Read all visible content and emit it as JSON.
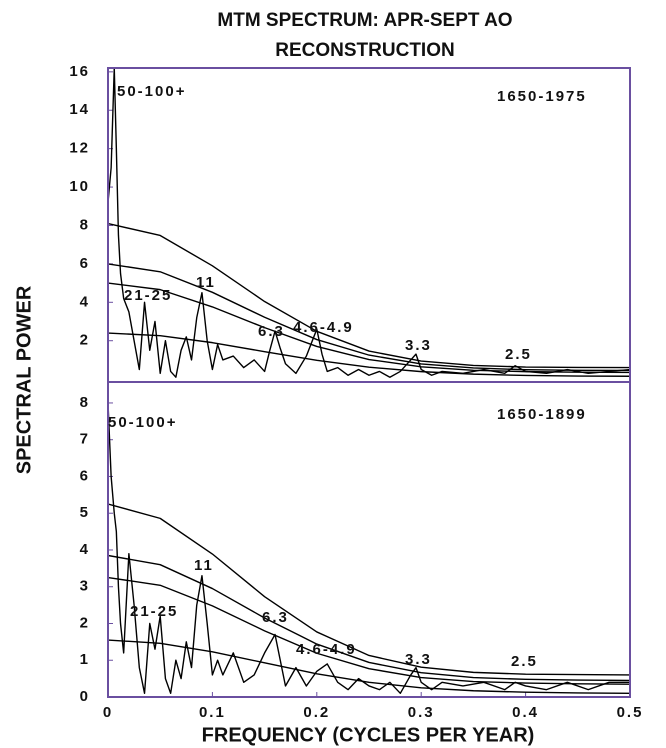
{
  "chart_data": [
    {
      "type": "line",
      "title": "MTM SPECTRUM: APR-SEPT AO RECONSTRUCTION",
      "ylabel": "SPECTRAL POWER",
      "xlim": [
        0,
        0.5
      ],
      "ylim": [
        -0.15,
        16.2
      ],
      "yticks": [
        2,
        4,
        6,
        8,
        10,
        12,
        14,
        16
      ],
      "color": "#000000",
      "frame_color": "#6a4fa0",
      "annotations": [
        "50-100+",
        "1650-1975",
        "11",
        "21-25",
        "6.3",
        "4.6-4.9",
        "3.3",
        "2.5"
      ],
      "series": [
        {
          "x": [
            0,
            0.003,
            0.006,
            0.008,
            0.01,
            0.012,
            0.015,
            0.02,
            0.025,
            0.03,
            0.035,
            0.04,
            0.045,
            0.05,
            0.055,
            0.06,
            0.065,
            0.07,
            0.075,
            0.08,
            0.085,
            0.09,
            0.095,
            0.1,
            0.105,
            0.11,
            0.12,
            0.13,
            0.14,
            0.15,
            0.155,
            0.16,
            0.165,
            0.17,
            0.18,
            0.19,
            0.2,
            0.205,
            0.21,
            0.22,
            0.23,
            0.24,
            0.25,
            0.26,
            0.27,
            0.28,
            0.29,
            0.295,
            0.3,
            0.31,
            0.32,
            0.34,
            0.36,
            0.38,
            0.39,
            0.4,
            0.42,
            0.44,
            0.46,
            0.48,
            0.5
          ],
          "values": [
            9.2,
            11,
            16.2,
            12,
            7.5,
            5.5,
            4.2,
            3.5,
            2.0,
            0.5,
            4.0,
            1.5,
            3.0,
            0.3,
            2.0,
            0.4,
            0.1,
            1.5,
            2.2,
            1.0,
            3.2,
            4.5,
            2.0,
            0.5,
            1.8,
            1.0,
            1.2,
            0.6,
            1.0,
            0.4,
            1.5,
            2.5,
            1.6,
            0.8,
            0.3,
            1.2,
            2.6,
            1.3,
            0.4,
            0.6,
            0.2,
            0.5,
            0.2,
            0.4,
            0.1,
            0.4,
            1.0,
            1.3,
            0.5,
            0.2,
            0.4,
            0.3,
            0.5,
            0.3,
            0.7,
            0.4,
            0.3,
            0.5,
            0.3,
            0.4,
            0.5
          ]
        },
        {
          "x": [
            0,
            0.05,
            0.1,
            0.15,
            0.2,
            0.25,
            0.3,
            0.35,
            0.4,
            0.45,
            0.5
          ],
          "values": [
            8.1,
            7.48,
            5.9,
            4.04,
            2.49,
            1.46,
            0.94,
            0.71,
            0.63,
            0.61,
            0.6
          ]
        },
        {
          "x": [
            0,
            0.05,
            0.1,
            0.15,
            0.2,
            0.25,
            0.3,
            0.35,
            0.4,
            0.45,
            0.5
          ],
          "values": [
            6.0,
            5.59,
            4.52,
            3.22,
            2.06,
            1.25,
            0.79,
            0.58,
            0.49,
            0.46,
            0.45
          ]
        },
        {
          "x": [
            0,
            0.05,
            0.1,
            0.15,
            0.2,
            0.25,
            0.3,
            0.35,
            0.4,
            0.45,
            0.5
          ],
          "values": [
            5.0,
            4.66,
            3.76,
            2.68,
            1.7,
            1.02,
            0.64,
            0.46,
            0.39,
            0.36,
            0.35
          ]
        },
        {
          "x": [
            0,
            0.05,
            0.1,
            0.15,
            0.2,
            0.25,
            0.3,
            0.35,
            0.4,
            0.45,
            0.5
          ],
          "values": [
            2.4,
            2.26,
            1.9,
            1.43,
            0.98,
            0.62,
            0.39,
            0.26,
            0.19,
            0.16,
            0.15
          ]
        }
      ]
    },
    {
      "type": "line",
      "xlabel": "FREQUENCY (CYCLES PER YEAR)",
      "xlim": [
        0,
        0.5
      ],
      "ylim": [
        0,
        8.57
      ],
      "xticks": [
        0,
        0.1,
        0.2,
        0.3,
        0.4,
        0.5
      ],
      "yticks": [
        0,
        1,
        2,
        3,
        4,
        5,
        6,
        7,
        8
      ],
      "color": "#000000",
      "frame_color": "#6a4fa0",
      "annotations": [
        "50-100+",
        "1650-1899",
        "11",
        "21-25",
        "6.3",
        "4.6-4.9",
        "3.3",
        "2.5"
      ],
      "series": [
        {
          "x": [
            0,
            0.003,
            0.006,
            0.008,
            0.01,
            0.012,
            0.015,
            0.02,
            0.025,
            0.03,
            0.035,
            0.04,
            0.045,
            0.05,
            0.055,
            0.06,
            0.065,
            0.07,
            0.075,
            0.08,
            0.085,
            0.09,
            0.095,
            0.1,
            0.105,
            0.11,
            0.12,
            0.13,
            0.14,
            0.15,
            0.16,
            0.165,
            0.17,
            0.18,
            0.19,
            0.2,
            0.21,
            0.22,
            0.23,
            0.24,
            0.25,
            0.26,
            0.27,
            0.28,
            0.29,
            0.295,
            0.3,
            0.31,
            0.32,
            0.34,
            0.36,
            0.38,
            0.39,
            0.4,
            0.42,
            0.44,
            0.46,
            0.48,
            0.5
          ],
          "values": [
            8.0,
            6.0,
            5.0,
            4.5,
            3.0,
            2.0,
            1.2,
            3.9,
            2.5,
            0.8,
            0.1,
            2.0,
            1.3,
            2.2,
            0.5,
            0.1,
            1.0,
            0.5,
            1.5,
            0.8,
            2.5,
            3.3,
            2.0,
            0.6,
            1.0,
            0.6,
            1.2,
            0.4,
            0.6,
            1.2,
            1.7,
            1.0,
            0.3,
            0.8,
            0.3,
            0.7,
            0.9,
            0.4,
            0.2,
            0.5,
            0.3,
            0.2,
            0.4,
            0.1,
            0.6,
            0.8,
            0.4,
            0.2,
            0.4,
            0.3,
            0.4,
            0.2,
            0.4,
            0.3,
            0.2,
            0.4,
            0.2,
            0.4,
            0.4
          ]
        },
        {
          "x": [
            0,
            0.05,
            0.1,
            0.15,
            0.2,
            0.25,
            0.3,
            0.35,
            0.4,
            0.45,
            0.5
          ],
          "values": [
            5.25,
            4.86,
            3.89,
            2.73,
            1.77,
            1.13,
            0.81,
            0.67,
            0.62,
            0.61,
            0.6
          ]
        },
        {
          "x": [
            0,
            0.05,
            0.1,
            0.15,
            0.2,
            0.25,
            0.3,
            0.35,
            0.4,
            0.45,
            0.5
          ],
          "values": [
            3.85,
            3.6,
            2.95,
            2.15,
            1.44,
            0.94,
            0.66,
            0.53,
            0.48,
            0.46,
            0.45
          ]
        },
        {
          "x": [
            0,
            0.05,
            0.1,
            0.15,
            0.2,
            0.25,
            0.3,
            0.35,
            0.4,
            0.45,
            0.5
          ],
          "values": [
            3.25,
            3.04,
            2.48,
            1.8,
            1.19,
            0.77,
            0.53,
            0.42,
            0.38,
            0.36,
            0.35
          ]
        },
        {
          "x": [
            0,
            0.05,
            0.1,
            0.15,
            0.2,
            0.25,
            0.3,
            0.35,
            0.4,
            0.45,
            0.5
          ],
          "values": [
            1.55,
            1.46,
            1.23,
            0.93,
            0.63,
            0.4,
            0.25,
            0.17,
            0.13,
            0.11,
            0.1
          ]
        }
      ]
    }
  ]
}
